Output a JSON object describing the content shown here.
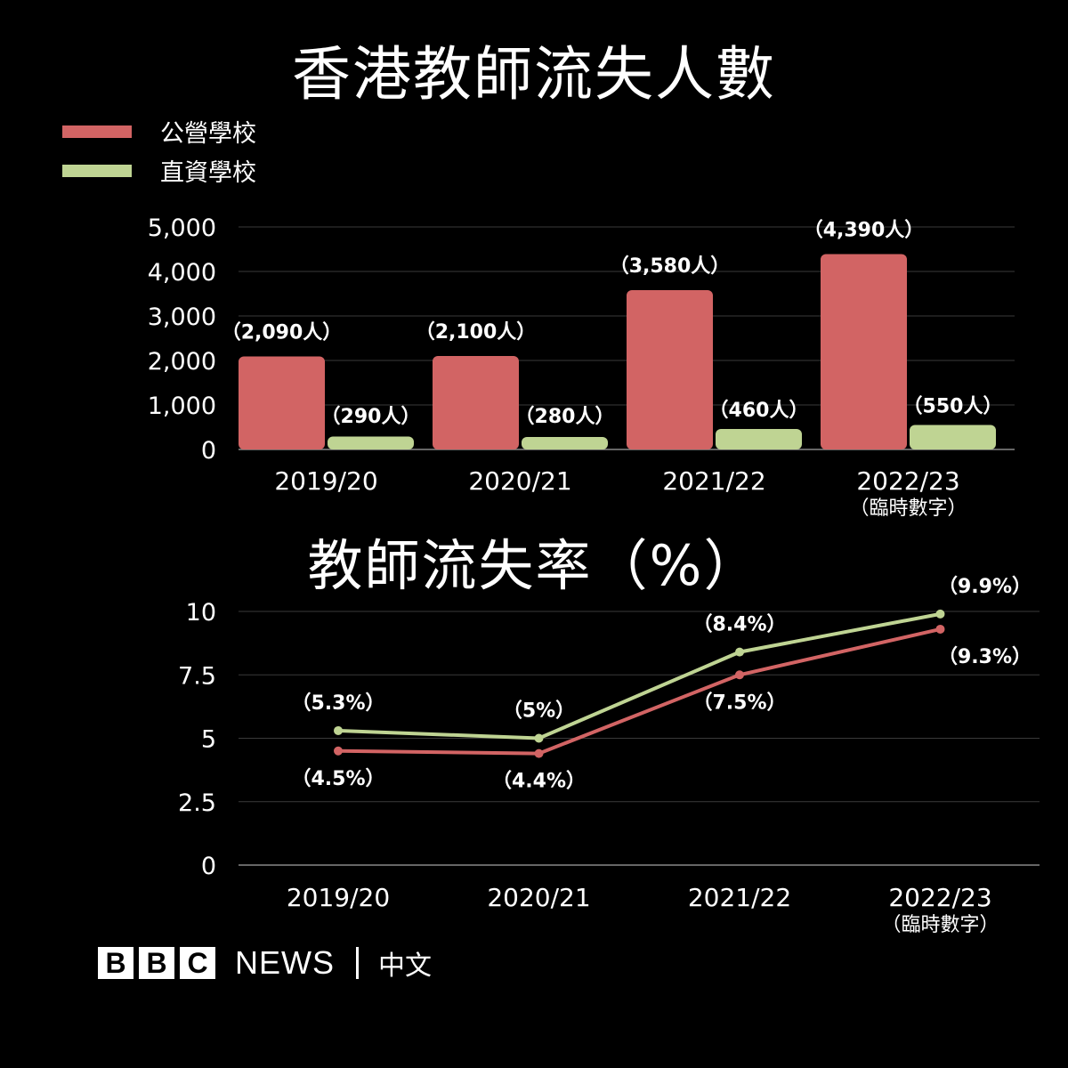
{
  "brand": {
    "bbc_letters": [
      "B",
      "B",
      "C"
    ],
    "news": "NEWS",
    "language": "中文"
  },
  "colors": {
    "public": "#d26464",
    "dss": "#bfd493",
    "grid": "#3a3a3a",
    "background": "#000000"
  },
  "chart_data": [
    {
      "type": "bar",
      "title": "香港教師流失人數",
      "categories": [
        "2019/20",
        "2020/21",
        "2021/22",
        "2022/23"
      ],
      "category_note": [
        "",
        "",
        "",
        "（臨時數字）"
      ],
      "series": [
        {
          "name": "公營學校",
          "values": [
            2090,
            2100,
            3580,
            4390
          ],
          "labels": [
            "（2,090人）",
            "（2,100人）",
            "（3,580人）",
            "（4,390人）"
          ]
        },
        {
          "name": "直資學校",
          "values": [
            290,
            280,
            460,
            550
          ],
          "labels": [
            "（290人）",
            "（280人）",
            "（460人）",
            "（550人）"
          ]
        }
      ],
      "yticks": [
        "0",
        "1,000",
        "2,000",
        "3,000",
        "4,000",
        "5,000"
      ],
      "ylim": [
        0,
        5000
      ],
      "legend": "top-left",
      "grid": true
    },
    {
      "type": "line",
      "title": "教師流失率（%）",
      "categories": [
        "2019/20",
        "2020/21",
        "2021/22",
        "2022/23"
      ],
      "category_note": [
        "",
        "",
        "",
        "（臨時數字）"
      ],
      "series": [
        {
          "name": "公營學校",
          "values": [
            4.5,
            4.4,
            7.5,
            9.3
          ],
          "labels": [
            "（4.5%）",
            "（4.4%）",
            "（7.5%）",
            "（9.3%）"
          ]
        },
        {
          "name": "直資學校",
          "values": [
            5.3,
            5.0,
            8.4,
            9.9
          ],
          "labels": [
            "（5.3%）",
            "（5%）",
            "（8.4%）",
            "（9.9%）"
          ]
        }
      ],
      "yticks": [
        "0",
        "2.5",
        "5",
        "7.5",
        "10"
      ],
      "ylim": [
        0,
        10
      ],
      "grid": true
    }
  ]
}
